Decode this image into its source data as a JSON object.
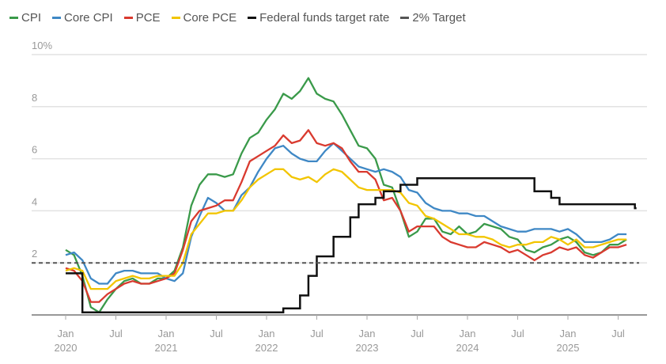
{
  "chart_data": {
    "type": "line",
    "ylim": [
      0,
      10
    ],
    "y_ticks": [
      "2",
      "4",
      "6",
      "8",
      "10%"
    ],
    "y_tick_values": [
      2,
      4,
      6,
      8,
      10
    ],
    "x_ticks": [
      {
        "date": "2020-01",
        "label": "Jan",
        "year": "2020"
      },
      {
        "date": "2020-07",
        "label": "Jul",
        "year": ""
      },
      {
        "date": "2021-01",
        "label": "Jan",
        "year": "2021"
      },
      {
        "date": "2021-07",
        "label": "Jul",
        "year": ""
      },
      {
        "date": "2022-01",
        "label": "Jan",
        "year": "2022"
      },
      {
        "date": "2022-07",
        "label": "Jul",
        "year": ""
      },
      {
        "date": "2023-01",
        "label": "Jan",
        "year": "2023"
      },
      {
        "date": "2023-07",
        "label": "Jul",
        "year": ""
      },
      {
        "date": "2024-01",
        "label": "Jan",
        "year": "2024"
      },
      {
        "date": "2024-07",
        "label": "Jul",
        "year": ""
      },
      {
        "date": "2025-01",
        "label": "Jan",
        "year": "2025"
      },
      {
        "date": "2025-07",
        "label": "Jul",
        "year": ""
      }
    ],
    "grid": true,
    "legend_position": "top-left",
    "start_month": "2020-01",
    "series": [
      {
        "name": "CPI",
        "color": "#3a9a4a",
        "values": [
          2.5,
          2.3,
          1.5,
          0.3,
          0.1,
          0.6,
          1.0,
          1.3,
          1.4,
          1.2,
          1.2,
          1.4,
          1.4,
          1.7,
          2.6,
          4.2,
          5.0,
          5.4,
          5.4,
          5.3,
          5.4,
          6.2,
          6.8,
          7.0,
          7.5,
          7.9,
          8.5,
          8.3,
          8.6,
          9.1,
          8.5,
          8.3,
          8.2,
          7.7,
          7.1,
          6.5,
          6.4,
          6.0,
          5.0,
          4.9,
          4.0,
          3.0,
          3.2,
          3.7,
          3.7,
          3.2,
          3.1,
          3.4,
          3.1,
          3.2,
          3.5,
          3.4,
          3.3,
          3.0,
          2.9,
          2.5,
          2.4,
          2.6,
          2.7,
          2.9,
          3.0,
          2.8,
          2.4,
          2.3,
          2.4,
          2.7,
          2.7,
          2.9
        ]
      },
      {
        "name": "Core CPI",
        "color": "#3f88c5",
        "values": [
          2.3,
          2.4,
          2.1,
          1.4,
          1.2,
          1.2,
          1.6,
          1.7,
          1.7,
          1.6,
          1.6,
          1.6,
          1.4,
          1.3,
          1.6,
          3.0,
          3.8,
          4.5,
          4.3,
          4.0,
          4.0,
          4.6,
          4.9,
          5.5,
          6.0,
          6.4,
          6.5,
          6.2,
          6.0,
          5.9,
          5.9,
          6.3,
          6.6,
          6.3,
          6.0,
          5.7,
          5.6,
          5.5,
          5.6,
          5.5,
          5.3,
          4.8,
          4.7,
          4.3,
          4.1,
          4.0,
          4.0,
          3.9,
          3.9,
          3.8,
          3.8,
          3.6,
          3.4,
          3.3,
          3.2,
          3.2,
          3.3,
          3.3,
          3.3,
          3.2,
          3.3,
          3.1,
          2.8,
          2.8,
          2.8,
          2.9,
          3.1,
          3.1
        ]
      },
      {
        "name": "PCE",
        "color": "#d93a2f",
        "values": [
          1.8,
          1.7,
          1.3,
          0.5,
          0.5,
          0.8,
          1.0,
          1.2,
          1.3,
          1.2,
          1.2,
          1.3,
          1.4,
          1.6,
          2.5,
          3.6,
          4.0,
          4.1,
          4.2,
          4.4,
          4.4,
          5.1,
          5.9,
          6.1,
          6.3,
          6.5,
          6.9,
          6.6,
          6.7,
          7.1,
          6.6,
          6.5,
          6.6,
          6.4,
          5.9,
          5.5,
          5.5,
          5.2,
          4.4,
          4.5,
          4.0,
          3.2,
          3.4,
          3.4,
          3.4,
          3.0,
          2.8,
          2.7,
          2.6,
          2.6,
          2.8,
          2.7,
          2.6,
          2.4,
          2.5,
          2.3,
          2.1,
          2.3,
          2.4,
          2.6,
          2.5,
          2.6,
          2.3,
          2.2,
          2.4,
          2.6,
          2.6,
          2.7
        ]
      },
      {
        "name": "Core PCE",
        "color": "#f2c500",
        "values": [
          1.7,
          1.8,
          1.7,
          1.0,
          1.0,
          1.0,
          1.3,
          1.4,
          1.5,
          1.4,
          1.4,
          1.5,
          1.5,
          1.5,
          2.0,
          3.1,
          3.5,
          3.9,
          3.9,
          4.0,
          4.0,
          4.4,
          4.9,
          5.2,
          5.4,
          5.6,
          5.6,
          5.3,
          5.2,
          5.3,
          5.1,
          5.4,
          5.6,
          5.5,
          5.2,
          4.9,
          4.8,
          4.8,
          4.8,
          4.8,
          4.7,
          4.3,
          4.2,
          3.8,
          3.7,
          3.5,
          3.3,
          3.1,
          3.1,
          3.0,
          3.0,
          2.9,
          2.7,
          2.6,
          2.7,
          2.7,
          2.8,
          2.8,
          3.0,
          2.9,
          2.7,
          2.9,
          2.6,
          2.6,
          2.7,
          2.8,
          2.9,
          2.9
        ]
      },
      {
        "name": "Federal funds target rate",
        "color": "#111111",
        "step": true,
        "points": [
          [
            "2020-01",
            1.6
          ],
          [
            "2020-03",
            0.1
          ],
          [
            "2022-03",
            0.25
          ],
          [
            "2022-05",
            0.75
          ],
          [
            "2022-06",
            1.5
          ],
          [
            "2022-07",
            2.25
          ],
          [
            "2022-09",
            3.0
          ],
          [
            "2022-11",
            3.75
          ],
          [
            "2022-12",
            4.25
          ],
          [
            "2023-02",
            4.5
          ],
          [
            "2023-03",
            4.75
          ],
          [
            "2023-05",
            5.0
          ],
          [
            "2023-07",
            5.25
          ],
          [
            "2024-09",
            4.75
          ],
          [
            "2024-11",
            4.5
          ],
          [
            "2024-12",
            4.25
          ],
          [
            "2025-09",
            4.1
          ],
          [
            "2025-09",
            4.1
          ]
        ]
      },
      {
        "name": "2% Target",
        "color": "#555555",
        "dashed": true,
        "value": 2
      }
    ]
  }
}
